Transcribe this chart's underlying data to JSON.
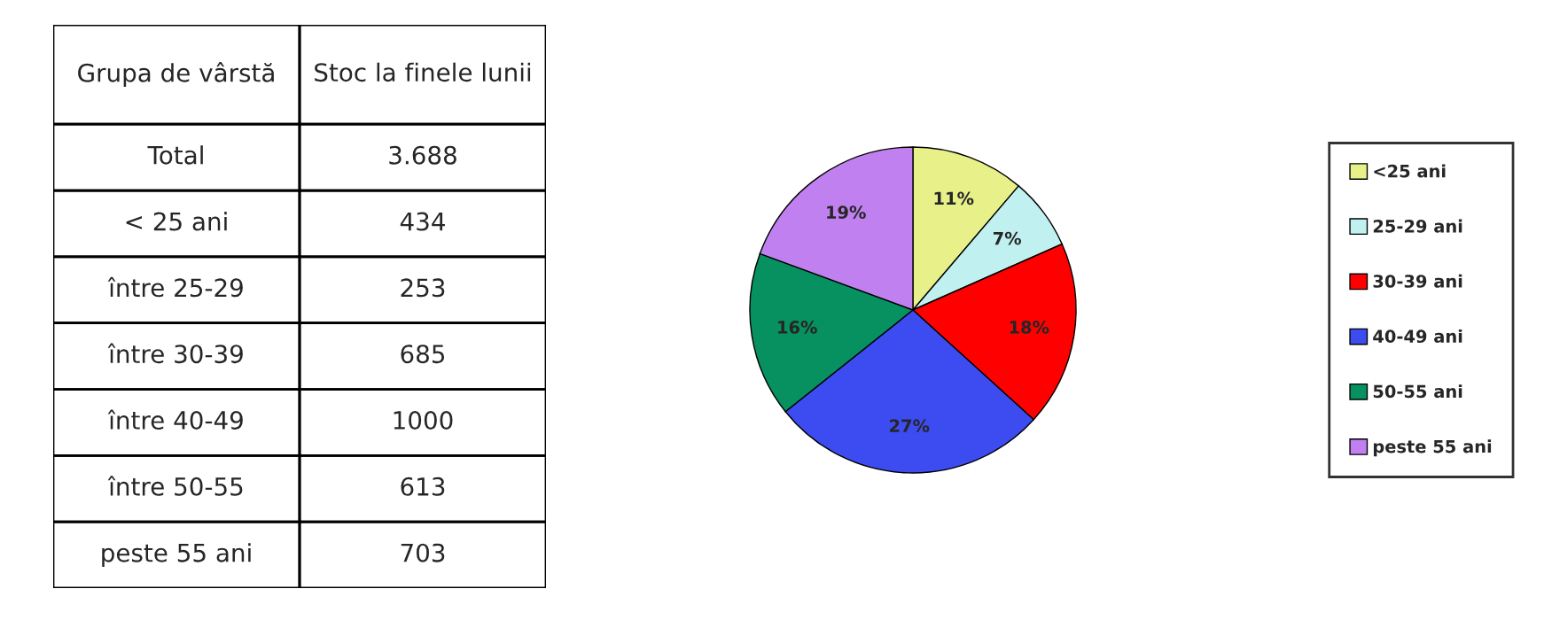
{
  "chart_data": [
    {
      "type": "other",
      "annotations": [
        "Grupa de vârstă",
        "Stoc la finele lunii",
        "Total",
        "3.688",
        "< 25 ani",
        "434",
        "între 25-29",
        "253",
        "între 30-39",
        "685",
        "între 40-49",
        "1000",
        "între 50-55",
        "613",
        "peste 55 ani",
        "703"
      ]
    },
    {
      "type": "pie",
      "categories": [
        "<25 ani",
        "25-29 ani",
        "30-39 ani",
        "40-49 ani",
        "50-55 ani",
        "peste 55 ani"
      ],
      "values": [
        11,
        7,
        18,
        27,
        16,
        19
      ],
      "value_labels": [
        "11%",
        "7%",
        "18%",
        "27%",
        "16%",
        "19%"
      ],
      "colors": [
        "#e8f08a",
        "#c0f0f0",
        "#ff0000",
        "#3c4cf0",
        "#079060",
        "#c080f0"
      ],
      "legend": "right"
    }
  ]
}
